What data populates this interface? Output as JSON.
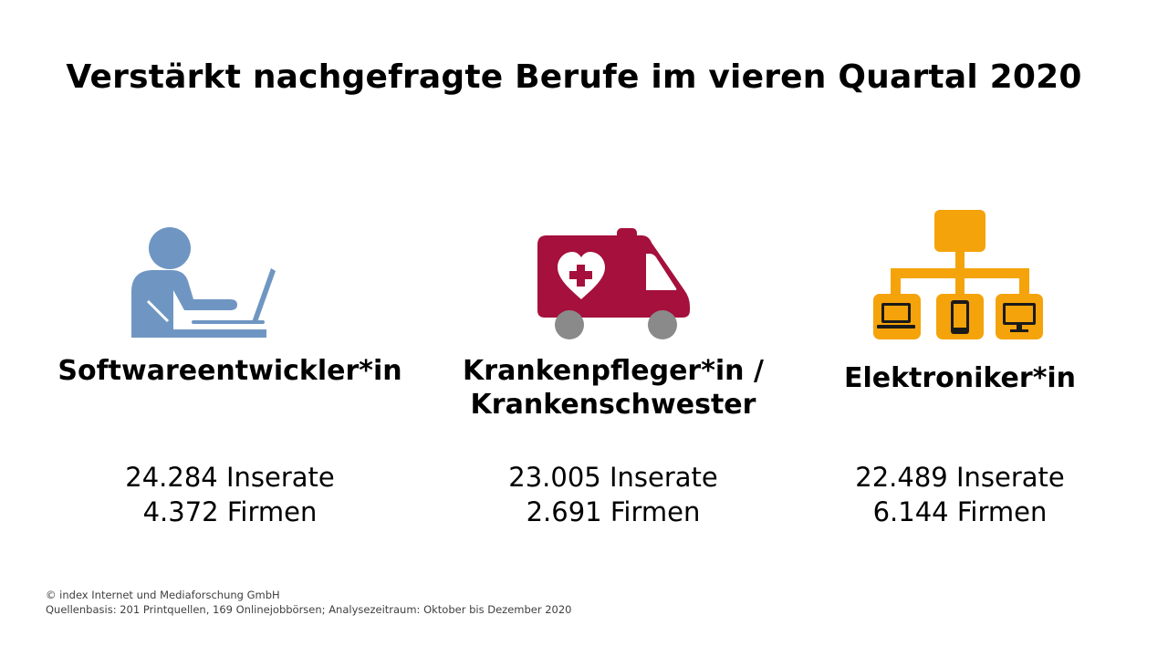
{
  "title": "Verstärkt nachgefragte Berufe im vieren Quartal 2020",
  "colors": {
    "software": "#6f96c2",
    "nurse": "#a5103c",
    "electronics": "#f5a30a"
  },
  "professions": [
    {
      "icon": "person-laptop-icon",
      "name_lines": [
        "Softwareentwickler*in"
      ],
      "ads": "24.284 Inserate",
      "firms": "4.372 Firmen"
    },
    {
      "icon": "ambulance-icon",
      "name_lines": [
        "Krankenpfleger*in /",
        "Krankenschwester"
      ],
      "ads": "23.005 Inserate",
      "firms": "2.691 Firmen"
    },
    {
      "icon": "device-network-icon",
      "name_lines": [
        "Elektroniker*in"
      ],
      "ads": "22.489 Inserate",
      "firms": "6.144 Firmen"
    }
  ],
  "footer": {
    "copyright": "© index Internet und Mediaforschung GmbH",
    "source": "Quellenbasis: 201 Printquellen, 169 Onlinejobbörsen; Analysezeitraum: Oktober bis Dezember 2020"
  }
}
